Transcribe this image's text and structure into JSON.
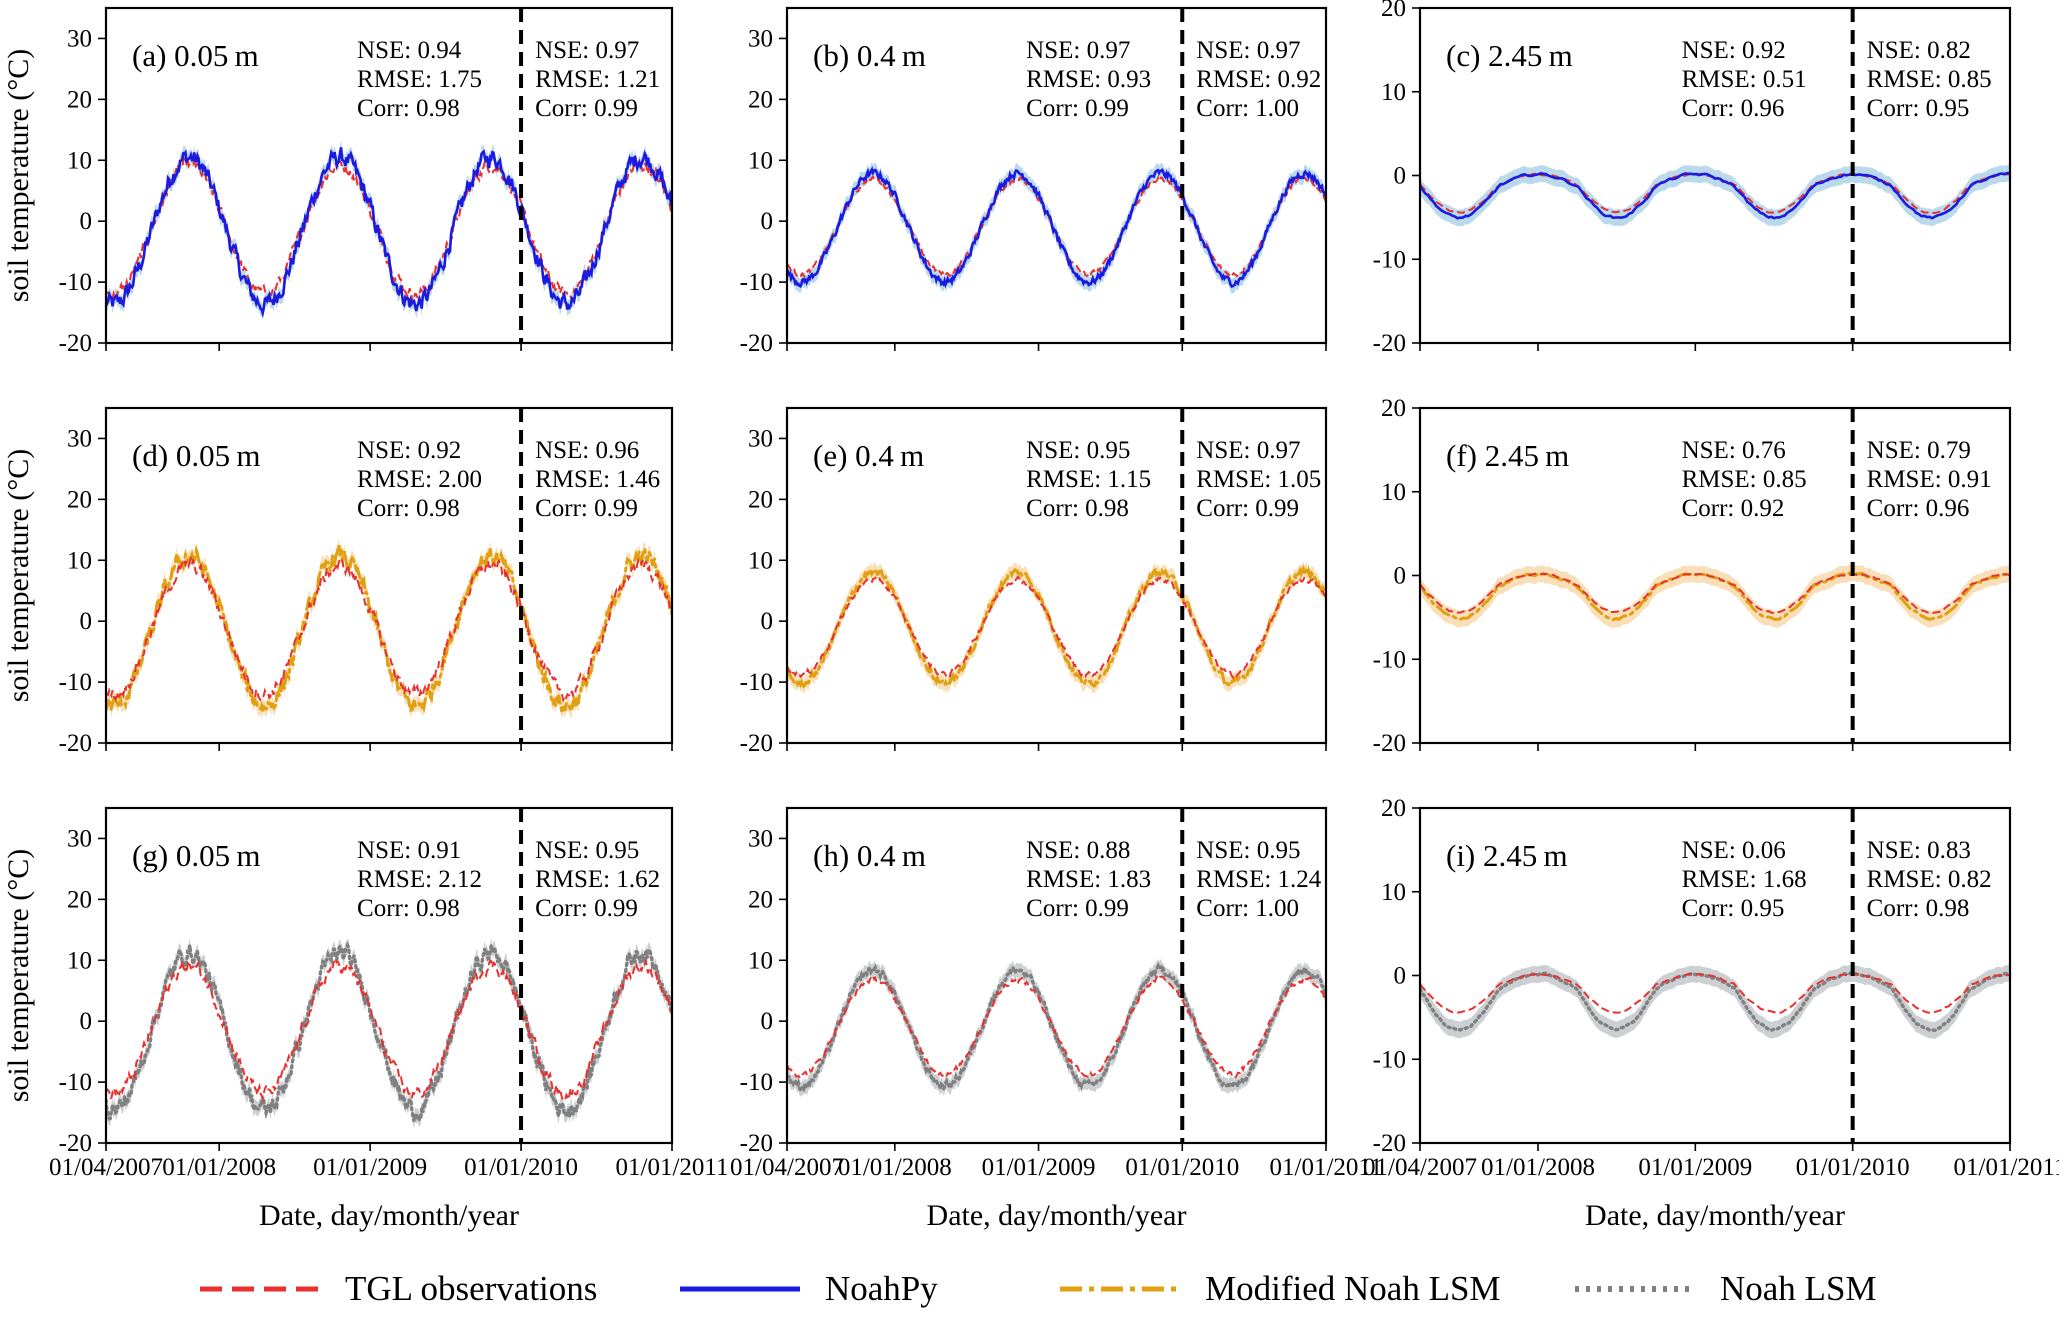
{
  "chart_data": {
    "type": "line",
    "figure": {
      "ylabel": "soil temperature (°C)",
      "xlabel": "Date, day/month/year",
      "x_ticks": [
        "01/04/2007",
        "01/01/2008",
        "01/01/2009",
        "01/01/2010",
        "01/01/2011"
      ],
      "x_tick_years": [
        2007.25,
        2008.0,
        2009.0,
        2010.0,
        2011.0
      ],
      "xlim": [
        2007.25,
        2011.0
      ],
      "divider_x": 2010.0
    },
    "legend": [
      {
        "key": "obs",
        "label": "TGL observations",
        "color": "#e8312f",
        "style": "dashed"
      },
      {
        "key": "noahpy",
        "label": "NoahPy",
        "color": "#1a1ae0",
        "style": "solid"
      },
      {
        "key": "modified",
        "label": "Modified Noah LSM",
        "color": "#e0a010",
        "style": "dashdot"
      },
      {
        "key": "noah",
        "label": "Noah LSM",
        "color": "#808080",
        "style": "dotted"
      }
    ],
    "colors": {
      "obs": "#e8312f",
      "noahpy": "#1a1ae0",
      "modified": "#e0a010",
      "noah": "#808080",
      "band_noahpy": "#a9cfe6",
      "band_modified": "#f6d7a8",
      "band_noah": "#c0c4c8"
    },
    "depth_params": {
      "0.05 m": {
        "mean": -1.5,
        "amp": 11.5,
        "phase": 2007.55,
        "noise": 2.0
      },
      "0.4 m": {
        "mean": -1.0,
        "amp": 8.5,
        "phase": 2007.6,
        "noise": 0.8
      },
      "2.45 m": {
        "mean": -1.2,
        "amp": 3.0,
        "phase": 2007.75,
        "noise": 0.2
      }
    },
    "panels": [
      {
        "label": "(a) 0.05 m",
        "depth": "0.05 m",
        "model": "noahpy",
        "ylim": [
          -20,
          35
        ],
        "yticks": [
          -20,
          -10,
          0,
          10,
          20,
          30
        ],
        "stats_left": [
          "NSE: 0.94",
          "RMSE: 1.75",
          "Corr: 0.98"
        ],
        "stats_right": [
          "NSE: 0.97",
          "RMSE: 1.21",
          "Corr: 0.99"
        ]
      },
      {
        "label": "(b) 0.4 m",
        "depth": "0.4 m",
        "model": "noahpy",
        "ylim": [
          -20,
          35
        ],
        "yticks": [
          -20,
          -10,
          0,
          10,
          20,
          30
        ],
        "stats_left": [
          "NSE: 0.97",
          "RMSE: 0.93",
          "Corr: 0.99"
        ],
        "stats_right": [
          "NSE: 0.97",
          "RMSE: 0.92",
          "Corr: 1.00"
        ]
      },
      {
        "label": "(c) 2.45 m",
        "depth": "2.45 m",
        "model": "noahpy",
        "ylim": [
          -20,
          20
        ],
        "yticks": [
          -20,
          -10,
          0,
          10,
          20
        ],
        "stats_left": [
          "NSE: 0.92",
          "RMSE: 0.51",
          "Corr: 0.96"
        ],
        "stats_right": [
          "NSE: 0.82",
          "RMSE: 0.85",
          "Corr: 0.95"
        ]
      },
      {
        "label": "(d) 0.05 m",
        "depth": "0.05 m",
        "model": "modified",
        "ylim": [
          -20,
          35
        ],
        "yticks": [
          -20,
          -10,
          0,
          10,
          20,
          30
        ],
        "stats_left": [
          "NSE: 0.92",
          "RMSE: 2.00",
          "Corr: 0.98"
        ],
        "stats_right": [
          "NSE: 0.96",
          "RMSE: 1.46",
          "Corr: 0.99"
        ]
      },
      {
        "label": "(e) 0.4 m",
        "depth": "0.4 m",
        "model": "modified",
        "ylim": [
          -20,
          35
        ],
        "yticks": [
          -20,
          -10,
          0,
          10,
          20,
          30
        ],
        "stats_left": [
          "NSE: 0.95",
          "RMSE: 1.15",
          "Corr: 0.98"
        ],
        "stats_right": [
          "NSE: 0.97",
          "RMSE: 1.05",
          "Corr: 0.99"
        ]
      },
      {
        "label": "(f) 2.45 m",
        "depth": "2.45 m",
        "model": "modified",
        "ylim": [
          -20,
          20
        ],
        "yticks": [
          -20,
          -10,
          0,
          10,
          20
        ],
        "stats_left": [
          "NSE: 0.76",
          "RMSE: 0.85",
          "Corr: 0.92"
        ],
        "stats_right": [
          "NSE: 0.79",
          "RMSE: 0.91",
          "Corr: 0.96"
        ]
      },
      {
        "label": "(g) 0.05 m",
        "depth": "0.05 m",
        "model": "noah",
        "ylim": [
          -20,
          35
        ],
        "yticks": [
          -20,
          -10,
          0,
          10,
          20,
          30
        ],
        "stats_left": [
          "NSE: 0.91",
          "RMSE: 2.12",
          "Corr: 0.98"
        ],
        "stats_right": [
          "NSE: 0.95",
          "RMSE: 1.62",
          "Corr: 0.99"
        ]
      },
      {
        "label": "(h) 0.4 m",
        "depth": "0.4 m",
        "model": "noah",
        "ylim": [
          -20,
          35
        ],
        "yticks": [
          -20,
          -10,
          0,
          10,
          20,
          30
        ],
        "stats_left": [
          "NSE: 0.88",
          "RMSE: 1.83",
          "Corr: 0.99"
        ],
        "stats_right": [
          "NSE: 0.95",
          "RMSE: 1.24",
          "Corr: 1.00"
        ]
      },
      {
        "label": "(i) 2.45 m",
        "depth": "2.45 m",
        "model": "noah",
        "ylim": [
          -20,
          20
        ],
        "yticks": [
          -20,
          -10,
          0,
          10,
          20
        ],
        "stats_left": [
          "NSE: 0.06",
          "RMSE: 1.68",
          "Corr: 0.95"
        ],
        "stats_right": [
          "NSE: 0.83",
          "RMSE: 0.82",
          "Corr: 0.98"
        ]
      }
    ]
  }
}
